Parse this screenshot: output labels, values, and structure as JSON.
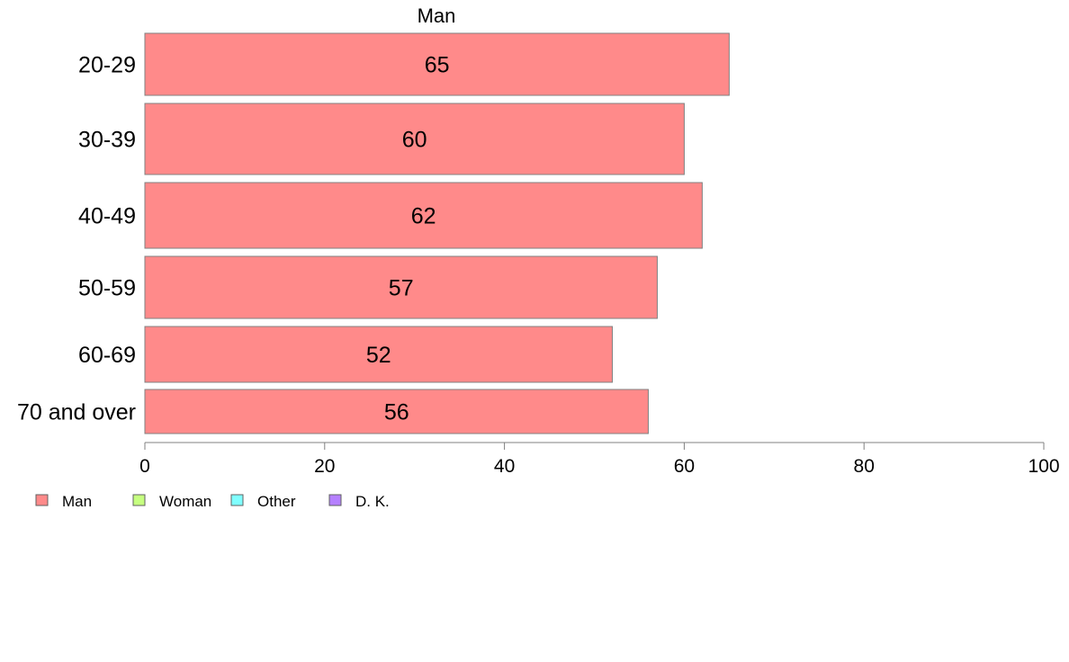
{
  "chart_data": {
    "type": "bar",
    "orientation": "horizontal",
    "title": "Man",
    "categories": [
      "20-29",
      "30-39",
      "40-49",
      "50-59",
      "60-69",
      "70 and over"
    ],
    "series": [
      {
        "name": "Man",
        "values": [
          65,
          60,
          62,
          57,
          52,
          56
        ]
      }
    ],
    "xlim": [
      0,
      100
    ],
    "xticks": [
      "0",
      "20",
      "40",
      "60",
      "80",
      "100"
    ],
    "grid": false,
    "legend": {
      "placement": "bottom-left",
      "entries": [
        {
          "label": "Man",
          "color": "#ff8a8a"
        },
        {
          "label": "Woman",
          "color": "#c6ff80"
        },
        {
          "label": "Other",
          "color": "#80ffff"
        },
        {
          "label": "D. K.",
          "color": "#b580ff"
        }
      ]
    },
    "bar_color": "#ff8a8a",
    "bar_border": "#808080",
    "axis_color": "#808080"
  }
}
